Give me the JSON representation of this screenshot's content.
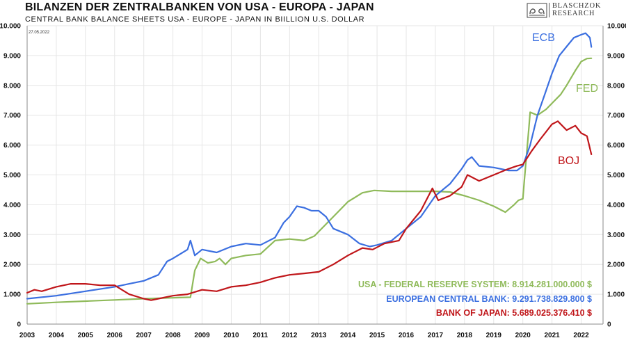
{
  "header": {
    "title": "BILANZEN DER ZENTRALBANKEN VON USA - EUROPA - JAPAN",
    "subtitle": "CENTRAL BANK BALANCE SHEETS USA - EUROPE - JAPAN IN BIILLION U.S. DOLLAR",
    "date": "27.05.2022"
  },
  "logo": {
    "line1": "BLASCHZOK",
    "line2": "RESEARCH",
    "icon": "twin-swans-logo-icon"
  },
  "colors": {
    "fed": "#8fba5a",
    "ecb": "#3b6fe0",
    "boj": "#c0161a",
    "grid": "#e6e6e6"
  },
  "chart_data": {
    "type": "line",
    "title": "BILANZEN DER ZENTRALBANKEN VON USA - EUROPA - JAPAN",
    "subtitle": "CENTRAL BANK BALANCE SHEETS USA - EUROPE - JAPAN IN BIILLION U.S. DOLLAR",
    "xlabel": "",
    "ylabel": "",
    "xlim": [
      2003.0,
      2022.75
    ],
    "ylim": [
      0,
      10000
    ],
    "grid": true,
    "x_ticks": [
      2003,
      2004,
      2005,
      2006,
      2007,
      2008,
      2009,
      2010,
      2011,
      2012,
      2013,
      2014,
      2015,
      2016,
      2017,
      2018,
      2019,
      2020,
      2021,
      2022
    ],
    "y_ticks": [
      0,
      1000,
      2000,
      3000,
      4000,
      5000,
      6000,
      7000,
      8000,
      9000,
      10000
    ],
    "y_tick_labels": [
      "0",
      "1.000",
      "2.000",
      "3.000",
      "4.000",
      "5.000",
      "6.000",
      "7.000",
      "8.000",
      "9.000",
      "10.000"
    ],
    "series": [
      {
        "key": "fed",
        "name": "FED",
        "legend": "USA - FEDERAL RESERVE SYSTEM: 8.914.281.000.000 $",
        "points": [
          [
            2003.0,
            680
          ],
          [
            2004.0,
            730
          ],
          [
            2005.0,
            770
          ],
          [
            2006.0,
            810
          ],
          [
            2007.0,
            850
          ],
          [
            2008.0,
            880
          ],
          [
            2008.6,
            900
          ],
          [
            2008.75,
            1800
          ],
          [
            2008.95,
            2200
          ],
          [
            2009.2,
            2050
          ],
          [
            2009.45,
            2100
          ],
          [
            2009.6,
            2200
          ],
          [
            2009.8,
            2000
          ],
          [
            2010.0,
            2200
          ],
          [
            2010.5,
            2300
          ],
          [
            2011.0,
            2350
          ],
          [
            2011.5,
            2800
          ],
          [
            2012.0,
            2850
          ],
          [
            2012.5,
            2800
          ],
          [
            2012.85,
            2950
          ],
          [
            2013.0,
            3100
          ],
          [
            2013.5,
            3600
          ],
          [
            2014.0,
            4100
          ],
          [
            2014.5,
            4400
          ],
          [
            2014.9,
            4480
          ],
          [
            2015.5,
            4450
          ],
          [
            2016.0,
            4450
          ],
          [
            2017.0,
            4450
          ],
          [
            2017.5,
            4430
          ],
          [
            2018.0,
            4300
          ],
          [
            2018.5,
            4150
          ],
          [
            2019.0,
            3950
          ],
          [
            2019.4,
            3750
          ],
          [
            2019.7,
            4000
          ],
          [
            2019.85,
            4150
          ],
          [
            2020.0,
            4200
          ],
          [
            2020.05,
            4800
          ],
          [
            2020.2,
            6500
          ],
          [
            2020.25,
            7100
          ],
          [
            2020.5,
            7000
          ],
          [
            2020.8,
            7200
          ],
          [
            2021.0,
            7400
          ],
          [
            2021.3,
            7700
          ],
          [
            2021.5,
            8000
          ],
          [
            2021.8,
            8500
          ],
          [
            2022.0,
            8800
          ],
          [
            2022.2,
            8900
          ],
          [
            2022.35,
            8910
          ]
        ]
      },
      {
        "key": "ecb",
        "name": "ECB",
        "legend": "EUROPEAN CENTRAL BANK: 9.291.738.829.800 $",
        "points": [
          [
            2003.0,
            850
          ],
          [
            2004.0,
            950
          ],
          [
            2005.0,
            1100
          ],
          [
            2006.0,
            1250
          ],
          [
            2006.5,
            1350
          ],
          [
            2007.0,
            1450
          ],
          [
            2007.5,
            1650
          ],
          [
            2007.8,
            2100
          ],
          [
            2008.0,
            2200
          ],
          [
            2008.5,
            2500
          ],
          [
            2008.6,
            2800
          ],
          [
            2008.75,
            2300
          ],
          [
            2009.0,
            2500
          ],
          [
            2009.5,
            2400
          ],
          [
            2010.0,
            2600
          ],
          [
            2010.5,
            2700
          ],
          [
            2011.0,
            2650
          ],
          [
            2011.5,
            2900
          ],
          [
            2011.8,
            3400
          ],
          [
            2012.0,
            3600
          ],
          [
            2012.25,
            3950
          ],
          [
            2012.5,
            3900
          ],
          [
            2012.75,
            3800
          ],
          [
            2013.0,
            3800
          ],
          [
            2013.25,
            3600
          ],
          [
            2013.5,
            3200
          ],
          [
            2014.0,
            3000
          ],
          [
            2014.4,
            2700
          ],
          [
            2014.75,
            2600
          ],
          [
            2015.0,
            2650
          ],
          [
            2015.5,
            2800
          ],
          [
            2016.0,
            3200
          ],
          [
            2016.5,
            3600
          ],
          [
            2017.0,
            4300
          ],
          [
            2017.5,
            4700
          ],
          [
            2017.9,
            5200
          ],
          [
            2018.1,
            5500
          ],
          [
            2018.25,
            5600
          ],
          [
            2018.5,
            5300
          ],
          [
            2019.0,
            5250
          ],
          [
            2019.5,
            5150
          ],
          [
            2019.8,
            5150
          ],
          [
            2020.0,
            5300
          ],
          [
            2020.25,
            6000
          ],
          [
            2020.5,
            7000
          ],
          [
            2020.75,
            7700
          ],
          [
            2021.0,
            8400
          ],
          [
            2021.25,
            9000
          ],
          [
            2021.5,
            9300
          ],
          [
            2021.75,
            9600
          ],
          [
            2022.0,
            9700
          ],
          [
            2022.15,
            9750
          ],
          [
            2022.3,
            9600
          ],
          [
            2022.35,
            9290
          ]
        ]
      },
      {
        "key": "boj",
        "name": "BOJ",
        "legend": "BANK OF JAPAN: 5.689.025.376.410 $",
        "points": [
          [
            2003.0,
            1050
          ],
          [
            2003.25,
            1150
          ],
          [
            2003.5,
            1100
          ],
          [
            2004.0,
            1250
          ],
          [
            2004.5,
            1350
          ],
          [
            2005.0,
            1350
          ],
          [
            2005.5,
            1300
          ],
          [
            2006.0,
            1300
          ],
          [
            2006.25,
            1150
          ],
          [
            2006.5,
            1000
          ],
          [
            2007.0,
            850
          ],
          [
            2007.25,
            800
          ],
          [
            2007.5,
            850
          ],
          [
            2008.0,
            950
          ],
          [
            2008.5,
            1000
          ],
          [
            2009.0,
            1150
          ],
          [
            2009.5,
            1100
          ],
          [
            2010.0,
            1250
          ],
          [
            2010.5,
            1300
          ],
          [
            2011.0,
            1400
          ],
          [
            2011.5,
            1550
          ],
          [
            2012.0,
            1650
          ],
          [
            2012.5,
            1700
          ],
          [
            2013.0,
            1750
          ],
          [
            2013.5,
            2000
          ],
          [
            2014.0,
            2300
          ],
          [
            2014.5,
            2550
          ],
          [
            2014.85,
            2500
          ],
          [
            2015.25,
            2700
          ],
          [
            2015.75,
            2800
          ],
          [
            2016.0,
            3200
          ],
          [
            2016.5,
            3800
          ],
          [
            2016.9,
            4550
          ],
          [
            2017.1,
            4150
          ],
          [
            2017.5,
            4300
          ],
          [
            2017.9,
            4600
          ],
          [
            2018.1,
            5000
          ],
          [
            2018.5,
            4800
          ],
          [
            2019.0,
            5000
          ],
          [
            2019.5,
            5200
          ],
          [
            2019.8,
            5300
          ],
          [
            2020.0,
            5350
          ],
          [
            2020.3,
            5800
          ],
          [
            2020.6,
            6200
          ],
          [
            2021.0,
            6700
          ],
          [
            2021.2,
            6800
          ],
          [
            2021.5,
            6500
          ],
          [
            2021.8,
            6650
          ],
          [
            2022.0,
            6400
          ],
          [
            2022.2,
            6300
          ],
          [
            2022.35,
            5690
          ]
        ]
      }
    ]
  }
}
